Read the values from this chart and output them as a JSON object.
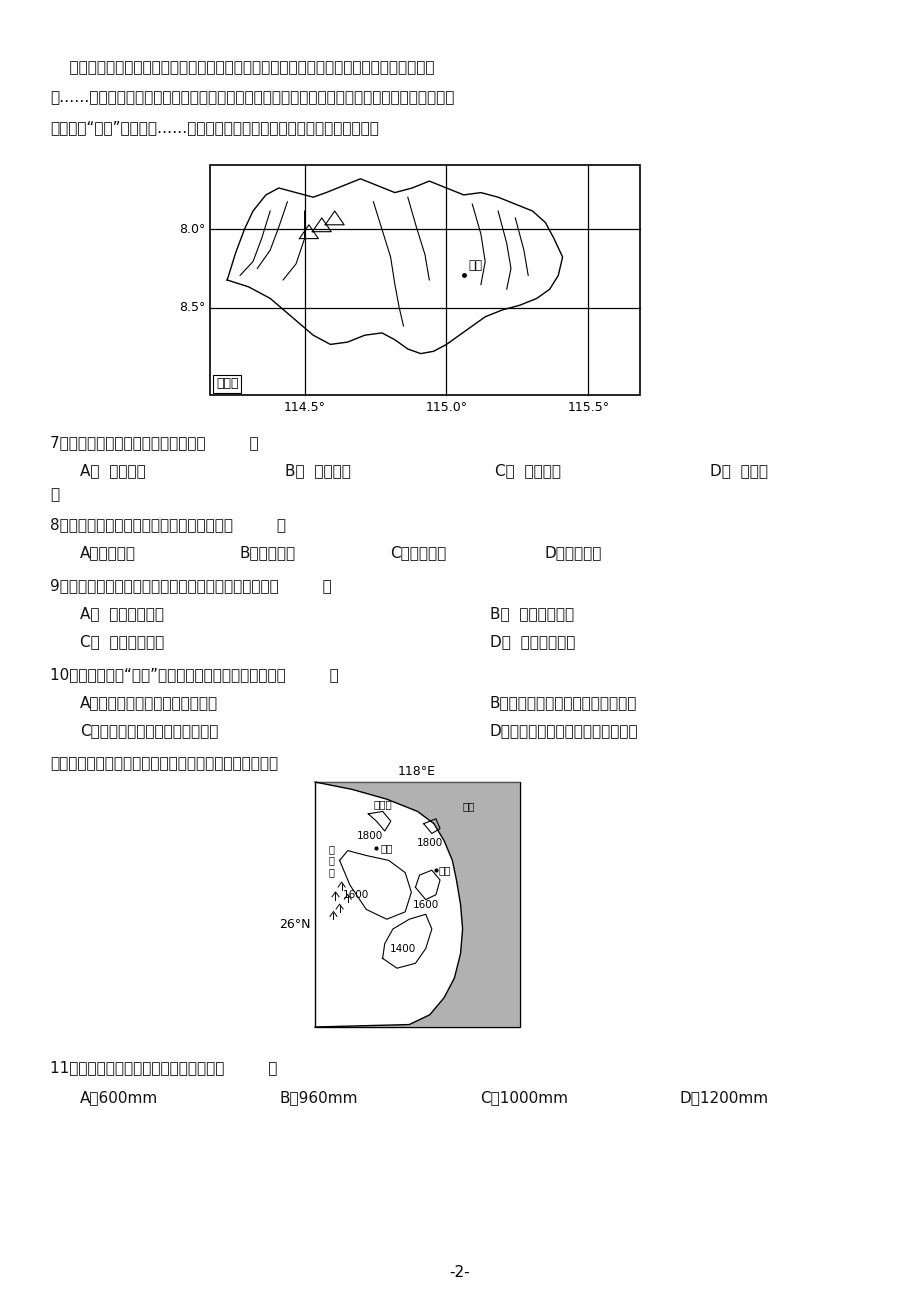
{
  "bg_color": "#f5f5f0",
  "page_color": "#ffffff",
  "text_color": "#111111",
  "page_width": 9.2,
  "page_height": 13.02,
  "font_size_body": 11,
  "font_size_small": 9,
  "map1_label": "巴厘岛",
  "map1_lon_labels": [
    "114.5°",
    "115.0°",
    "115.5°"
  ],
  "map1_lat_labels": [
    "8.0°",
    "8.5°"
  ],
  "map1_ubud_label": "乌布",
  "map2_lon_label": "118°E",
  "map2_lat_label": "26°N",
  "page_num": "-2-"
}
